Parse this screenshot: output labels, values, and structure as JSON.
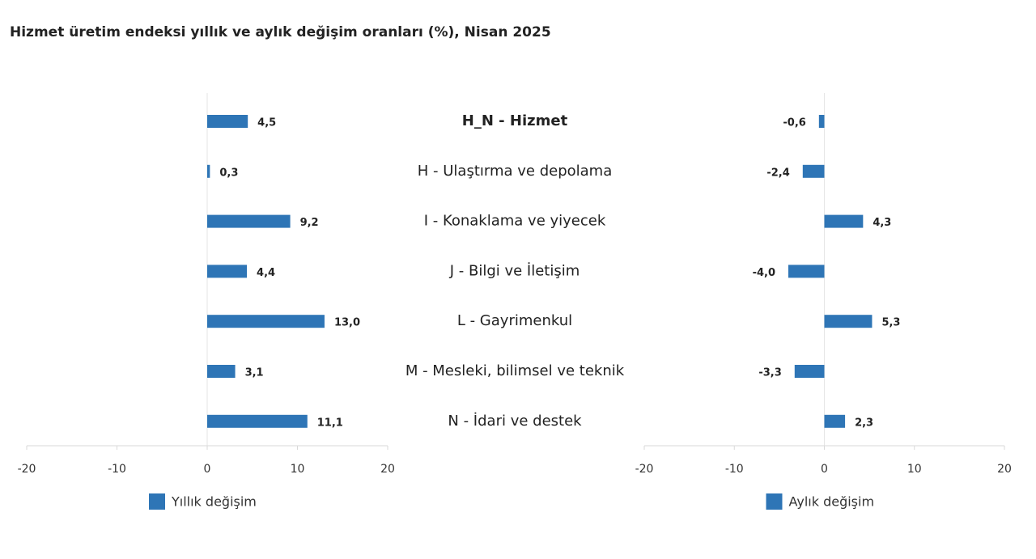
{
  "chart_data": [
    {
      "type": "bar",
      "orientation": "horizontal",
      "title": "Hizmet üretim endeksi yıllık ve aylık değişim oranları (%), Nisan 2025",
      "categories": [
        "H_N - Hizmet",
        "H - Ulaştırma ve depolama",
        "I - Konaklama ve yiyecek",
        "J - Bilgi ve İletişim",
        "L - Gayrimenkul",
        "M - Mesleki, bilimsel ve teknik",
        "N - İdari ve destek"
      ],
      "series": [
        {
          "name": "Yıllık değişim",
          "color": "#2e75b6",
          "values": [
            4.5,
            0.3,
            9.2,
            4.4,
            13.0,
            3.1,
            11.1
          ],
          "value_labels": [
            "4,5",
            "0,3",
            "9,2",
            "4,4",
            "13,0",
            "3,1",
            "11,1"
          ]
        }
      ],
      "xlim": [
        -20,
        20
      ],
      "xticks": [
        -20,
        -10,
        0,
        10,
        20
      ],
      "legend": "bottom"
    },
    {
      "type": "bar",
      "orientation": "horizontal",
      "series": [
        {
          "name": "Aylık değişim",
          "color": "#2e75b6",
          "values": [
            -0.6,
            -2.4,
            4.3,
            -4.0,
            5.3,
            -3.3,
            2.3
          ],
          "value_labels": [
            "-0,6",
            "-2,4",
            "4,3",
            "-4,0",
            "5,3",
            "-3,3",
            "2,3"
          ]
        }
      ],
      "xlim": [
        -20,
        20
      ],
      "xticks": [
        -20,
        -10,
        0,
        10,
        20
      ],
      "legend": "bottom"
    }
  ]
}
